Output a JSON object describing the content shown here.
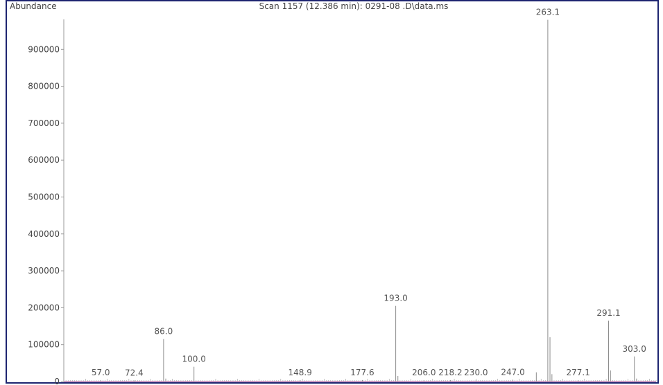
{
  "chart_data": {
    "type": "bar",
    "title": "Scan 1157 (12.386 min): 0291-08 .D\\data.ms",
    "ylabel": "Abundance",
    "xlabel": "",
    "xlim": [
      40,
      313
    ],
    "ylim": [
      0,
      1000000
    ],
    "y_ticks": [
      {
        "value": 0,
        "label": "0"
      },
      {
        "value": 100000,
        "label": "100000"
      },
      {
        "value": 200000,
        "label": "200000"
      },
      {
        "value": 300000,
        "label": "300000"
      },
      {
        "value": 400000,
        "label": "400000"
      },
      {
        "value": 500000,
        "label": "500000"
      },
      {
        "value": 600000,
        "label": "600000"
      },
      {
        "value": 700000,
        "label": "700000"
      },
      {
        "value": 800000,
        "label": "800000"
      },
      {
        "value": 900000,
        "label": "900000"
      }
    ],
    "grid": false,
    "peaks": [
      {
        "mz": 57.0,
        "abundance": 4000,
        "label": "57.0"
      },
      {
        "mz": 72.4,
        "abundance": 3000,
        "label": "72.4"
      },
      {
        "mz": 86.0,
        "abundance": 115000,
        "label": "86.0"
      },
      {
        "mz": 100.0,
        "abundance": 40000,
        "label": "100.0"
      },
      {
        "mz": 148.9,
        "abundance": 4000,
        "label": "148.9"
      },
      {
        "mz": 177.6,
        "abundance": 4000,
        "label": "177.6"
      },
      {
        "mz": 193.0,
        "abundance": 205000,
        "label": "193.0"
      },
      {
        "mz": 206.0,
        "abundance": 4000,
        "label": "206.0"
      },
      {
        "mz": 218.2,
        "abundance": 4000,
        "label": "218.2"
      },
      {
        "mz": 230.0,
        "abundance": 4000,
        "label": "230.0"
      },
      {
        "mz": 247.0,
        "abundance": 5000,
        "label": "247.0"
      },
      {
        "mz": 263.1,
        "abundance": 980000,
        "label": "263.1"
      },
      {
        "mz": 277.1,
        "abundance": 4000,
        "label": "277.1"
      },
      {
        "mz": 291.1,
        "abundance": 165000,
        "label": "291.1"
      },
      {
        "mz": 303.0,
        "abundance": 68000,
        "label": "303.0"
      }
    ],
    "minor_peaks": [
      {
        "mz": 257.8,
        "abundance": 25000
      },
      {
        "mz": 264.1,
        "abundance": 120000
      },
      {
        "mz": 265.0,
        "abundance": 20000
      },
      {
        "mz": 292.0,
        "abundance": 30000
      },
      {
        "mz": 304.0,
        "abundance": 8000
      },
      {
        "mz": 194.0,
        "abundance": 15000
      },
      {
        "mz": 87.0,
        "abundance": 8000
      }
    ],
    "colors": {
      "frame": "#1d2470",
      "peak": "#8c8c8c",
      "axis": "#9a9a9a",
      "baseline": "#a33a8c"
    }
  }
}
